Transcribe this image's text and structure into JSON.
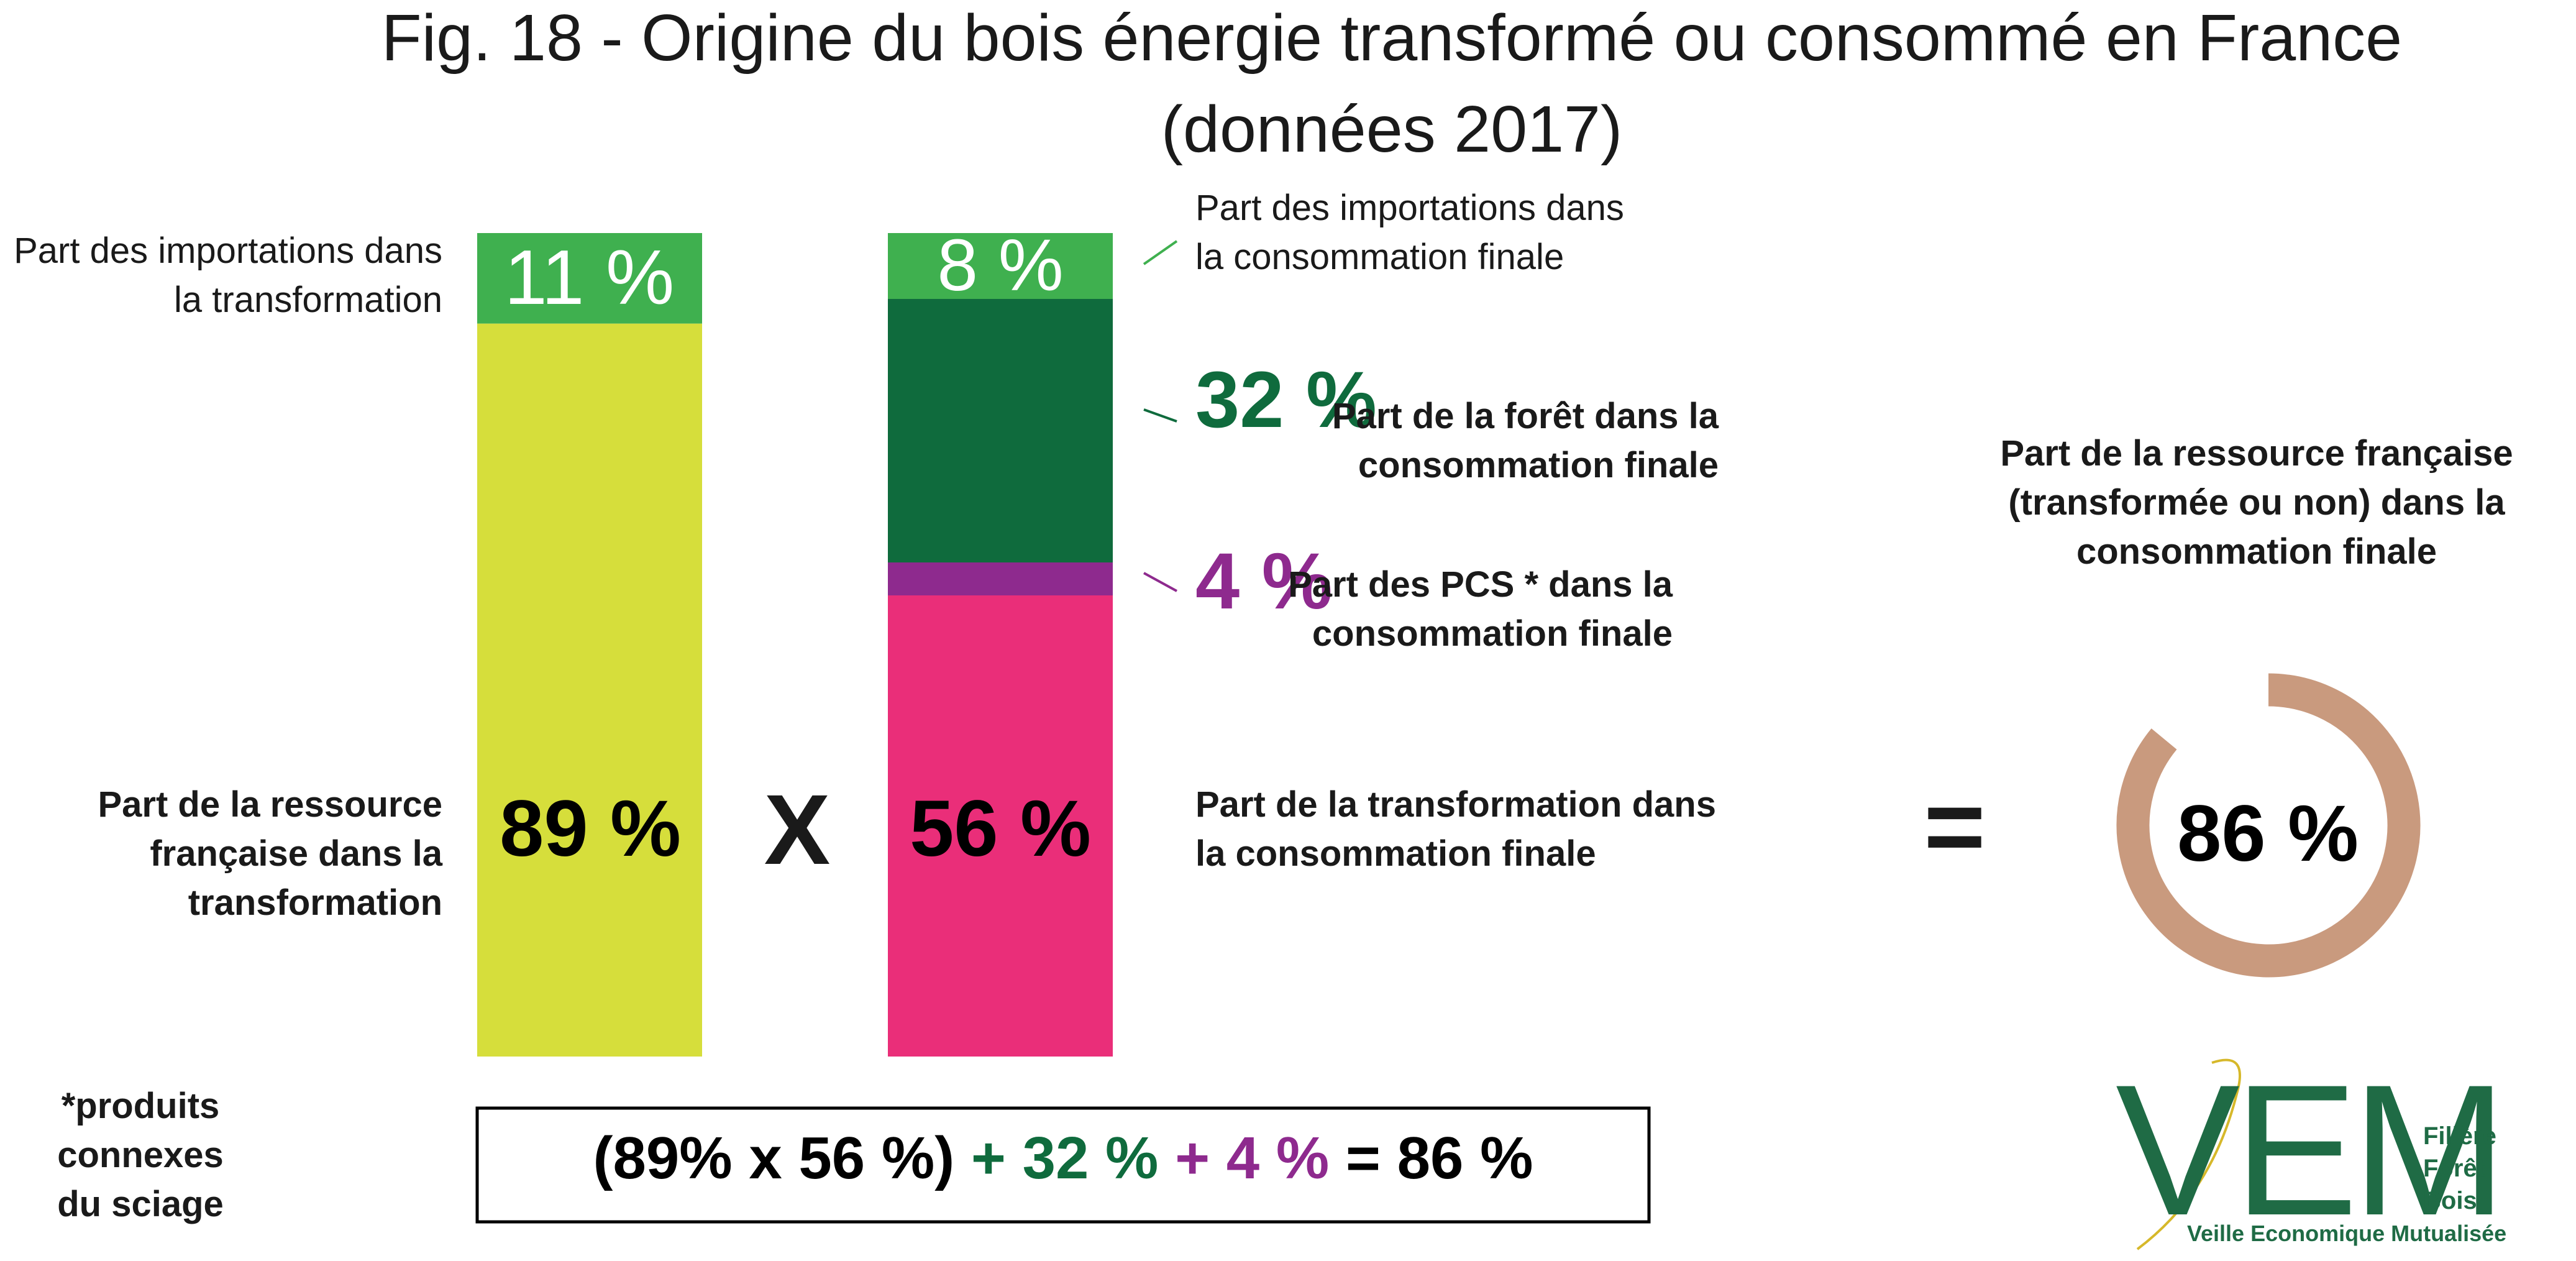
{
  "title": "Fig. 18 - Origine du bois énergie transformé ou consommé en France (données 2017)",
  "chart_data": [
    {
      "type": "stacked-bar",
      "series": [
        {
          "name": "Part de la ressource française dans la transformation",
          "color": "#d6de3b",
          "values": [
            89
          ],
          "value_labels": [
            "89 %"
          ]
        },
        {
          "name": "Part des importations dans la transformation",
          "color": "#3fb04f",
          "values": [
            11
          ],
          "value_labels": [
            "11 %"
          ]
        }
      ]
    },
    {
      "type": "stacked-bar",
      "series": [
        {
          "name": "Part de la transformation dans la consommation finale",
          "color": "#ea2e79",
          "values": [
            56
          ],
          "value_labels": [
            "56 %"
          ]
        },
        {
          "name": "Part des PCS * dans la consommation finale",
          "color": "#8e2a8e",
          "values": [
            4
          ],
          "value_labels": [
            "4 %"
          ]
        },
        {
          "name": "Part de la forêt dans la consommation finale",
          "color": "#0f6b3d",
          "values": [
            32
          ],
          "value_labels": [
            "32 %"
          ]
        },
        {
          "name": "Part des importations dans la consommation finale",
          "color": "#3fb04f",
          "values": [
            8
          ],
          "value_labels": [
            "8 %"
          ]
        }
      ]
    },
    {
      "type": "donut",
      "name": "Part de la ressource française (transformée ou non) dans la consommation finale",
      "values": [
        86
      ],
      "value_labels": [
        "86 %"
      ],
      "color": "#c99a7e"
    }
  ],
  "operators": [
    "X",
    "="
  ],
  "formula": [
    {
      "text": "(89% x 56 %)",
      "color": "#000000"
    },
    {
      "text": "+ 32 %",
      "color": "#0f6b3d"
    },
    {
      "text": "+ 4 %",
      "color": "#8e2a8e"
    },
    {
      "text": "= 86 %",
      "color": "#000000"
    }
  ],
  "footnote": "*produits connexes du sciage",
  "logo": {
    "mark": "VEM",
    "lines": [
      "Filière",
      "Forêt",
      "Bois"
    ],
    "tagline": "Veille Economique Mutualisée"
  }
}
